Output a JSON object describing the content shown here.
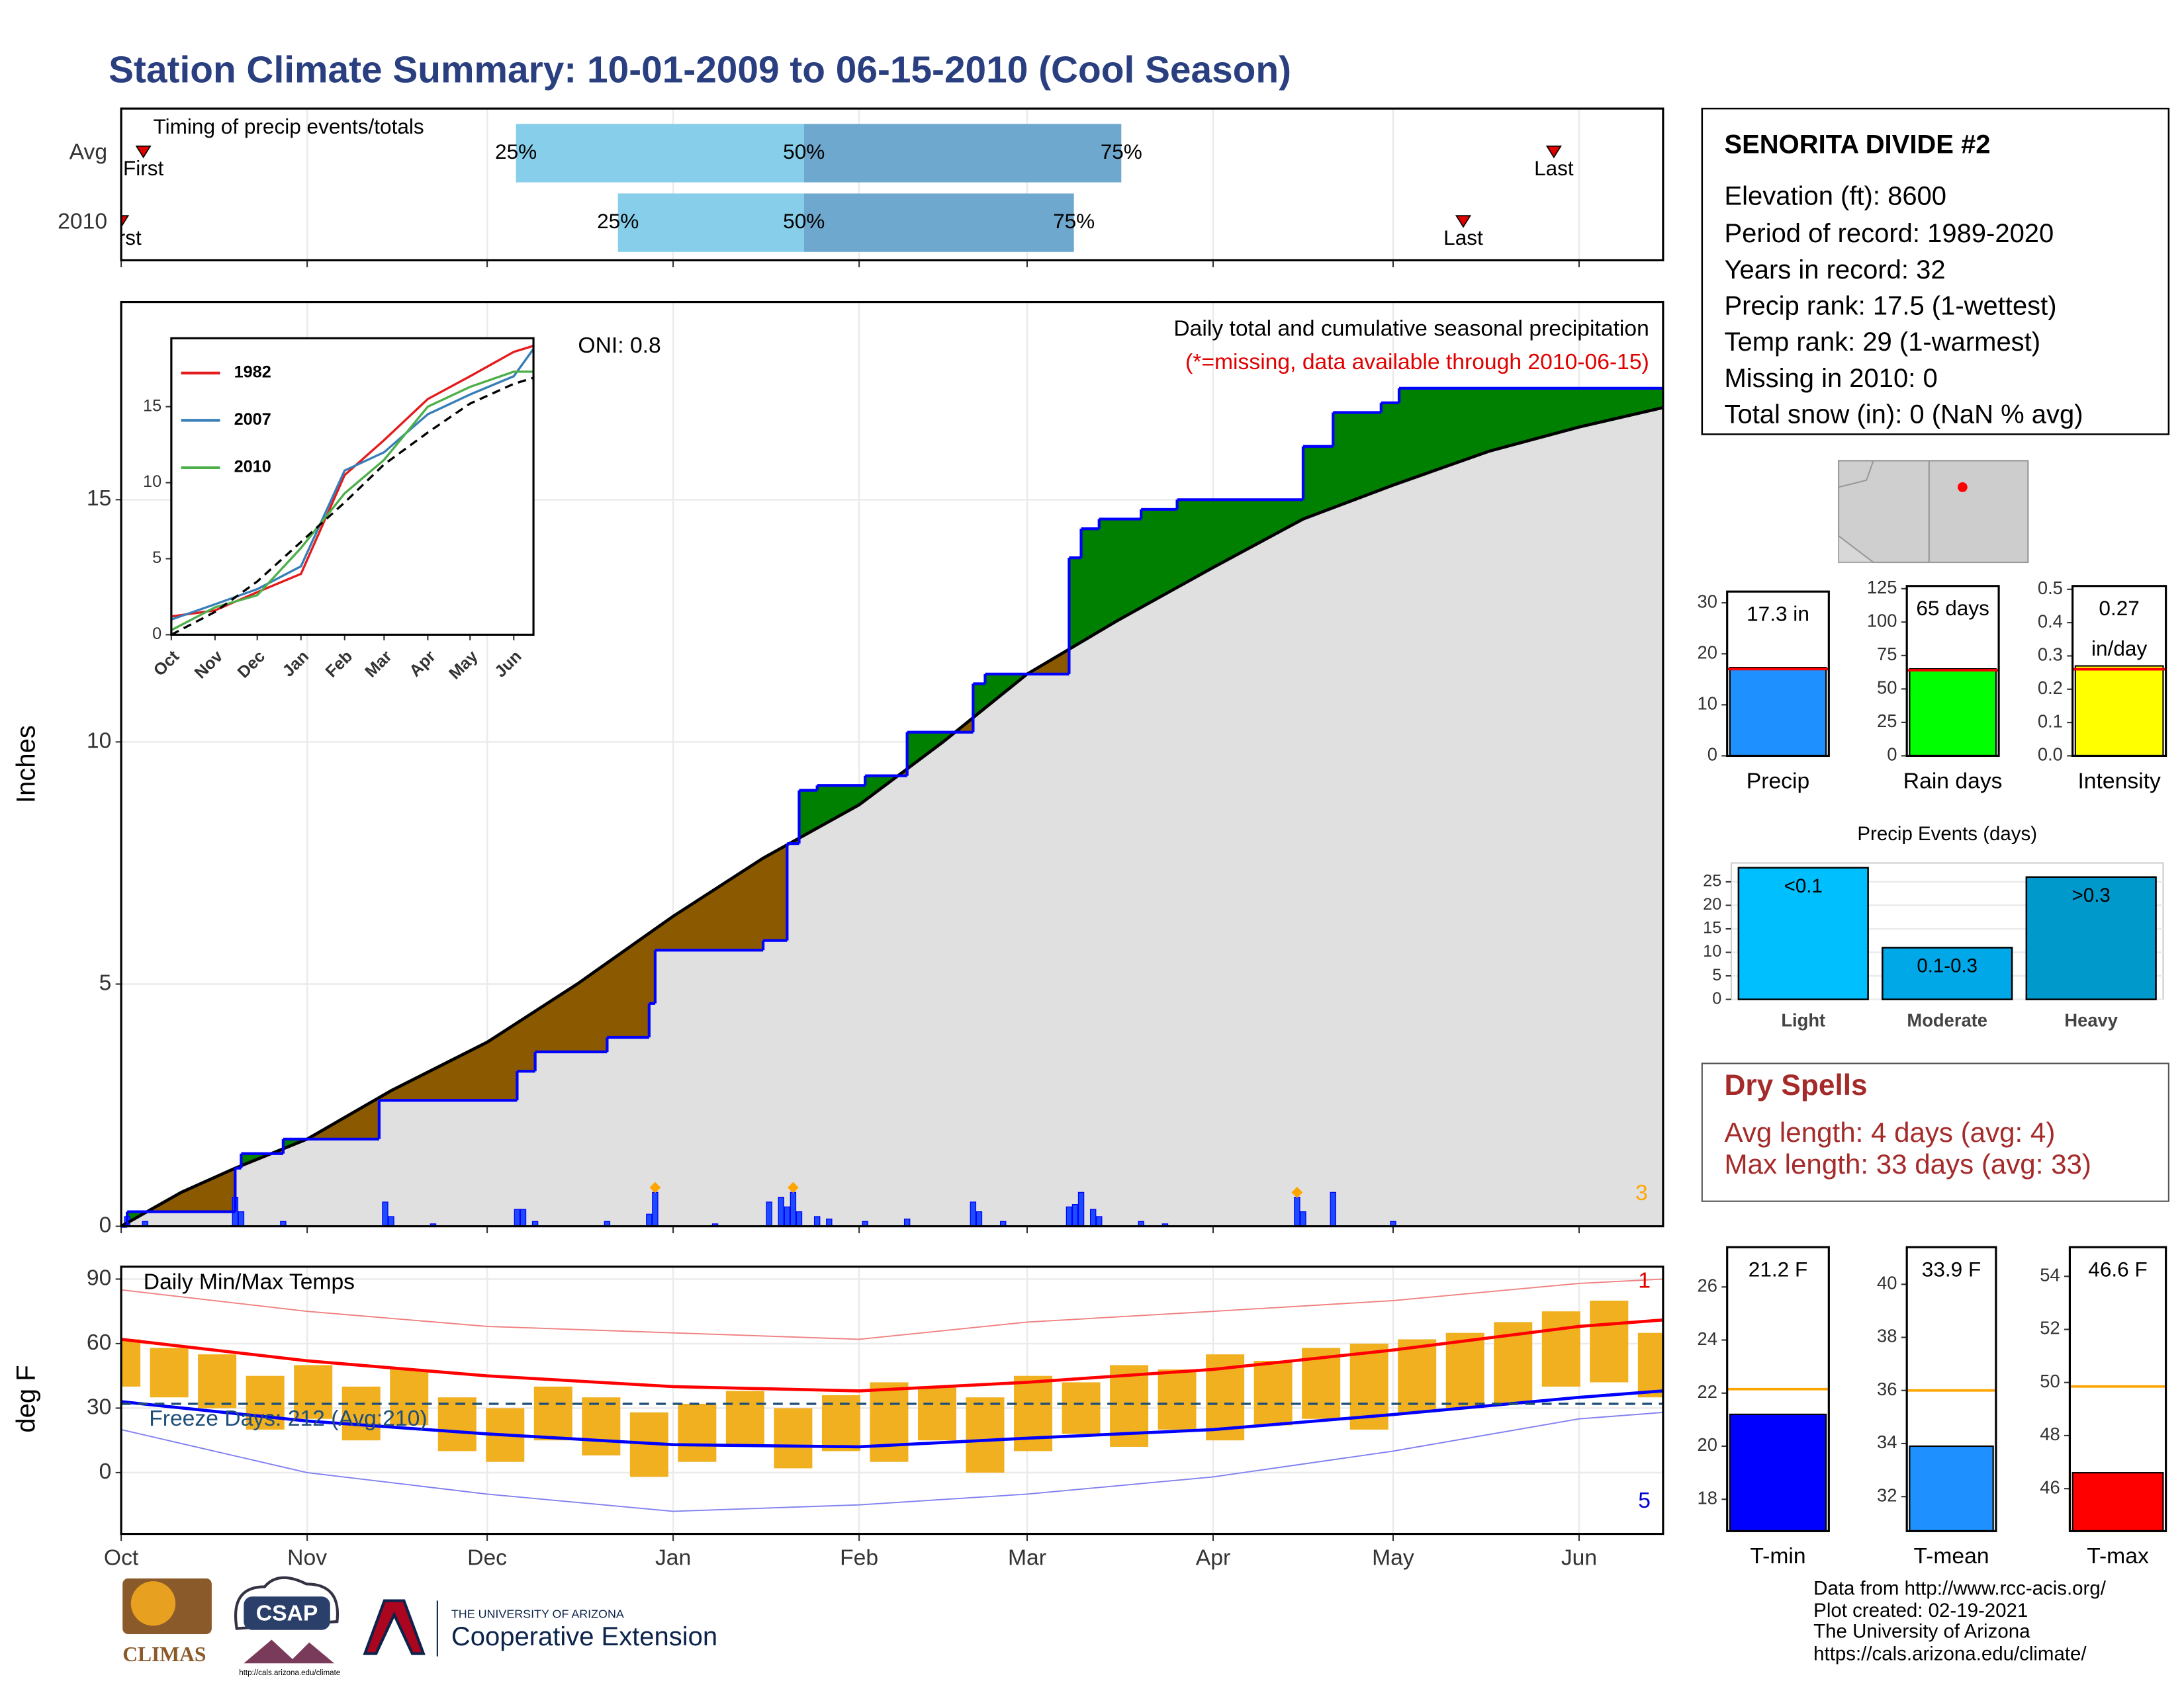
{
  "title": "Station Climate Summary: 10-01-2009 to 06-15-2010 (Cool Season)",
  "season_axis": {
    "xlim": [
      0,
      257
    ],
    "xticks": [
      {
        "value": 0,
        "label": "Oct"
      },
      {
        "value": 31,
        "label": "Nov"
      },
      {
        "value": 61,
        "label": "Dec"
      },
      {
        "value": 92,
        "label": "Jan"
      },
      {
        "value": 123,
        "label": "Feb"
      },
      {
        "value": 151,
        "label": "Mar"
      },
      {
        "value": 182,
        "label": "Apr"
      },
      {
        "value": 212,
        "label": "May"
      },
      {
        "value": 243,
        "label": "Jun"
      }
    ]
  },
  "chart_data": [
    {
      "type": "timing",
      "title": "Timing of precip events/totals",
      "categories": [
        "Avg",
        "2010"
      ],
      "first": [
        3.7,
        0
      ],
      "q25": [
        65.8,
        82.8
      ],
      "q50": [
        113.8,
        113.8
      ],
      "q75": [
        166.7,
        158.8
      ],
      "last": [
        238.8,
        223.7
      ],
      "labels": {
        "first": "First",
        "q25": "25%",
        "q50": "50%",
        "q75": "75%",
        "last": "Last"
      },
      "colors": {
        "lower": "#87ceeb",
        "upper": "#6fa8cf",
        "marker": "#e00000"
      }
    },
    {
      "type": "cumulative",
      "title": "Daily total and cumulative seasonal precipitation",
      "subtitle": "(*=missing, data available through 2010-06-15)",
      "annotation": "ONI: 0.8",
      "y_label": "Inches",
      "corner_label": "3",
      "ylim": [
        0,
        19.08
      ],
      "yticks": [
        0,
        5,
        10,
        15
      ],
      "above_color": "#008000",
      "below_color": "#8b5a00",
      "fill_color": "#e0e0e0",
      "series": [
        {
          "name": "Average",
          "color": "#000000",
          "x": [
            0,
            10,
            19,
            31,
            45,
            61,
            76,
            92,
            107,
            123,
            137,
            151,
            166,
            182,
            197,
            212,
            228,
            243,
            257
          ],
          "values": [
            0,
            0.7,
            1.2,
            1.8,
            2.8,
            3.8,
            5.0,
            6.4,
            7.6,
            8.7,
            10.0,
            11.4,
            12.5,
            13.6,
            14.6,
            15.3,
            16.0,
            16.5,
            16.9
          ]
        },
        {
          "name": "2010",
          "color": "#0000ff",
          "x": [
            0,
            1,
            19,
            20,
            27,
            43,
            66,
            69,
            81,
            88,
            89,
            107,
            111,
            113,
            116,
            124,
            131,
            142,
            144,
            158,
            160,
            163,
            170,
            176,
            197,
            202,
            210,
            213,
            257
          ],
          "values": [
            0,
            0.3,
            1.2,
            1.5,
            1.8,
            2.6,
            3.2,
            3.6,
            3.9,
            4.6,
            5.7,
            5.9,
            7.9,
            9.0,
            9.1,
            9.3,
            10.2,
            11.2,
            11.4,
            13.8,
            14.4,
            14.6,
            14.8,
            15.0,
            16.1,
            16.8,
            17.0,
            17.3,
            17.3
          ]
        }
      ],
      "daily": {
        "color": "#0000ff",
        "x": [
          1,
          4,
          19,
          20,
          27,
          44,
          45,
          52,
          66,
          67,
          69,
          81,
          88,
          89,
          99,
          108,
          110,
          111,
          112,
          113,
          116,
          118,
          124,
          131,
          142,
          143,
          147,
          158,
          159,
          160,
          162,
          163,
          170,
          174,
          196,
          197,
          202,
          212
        ],
        "values": [
          0.2,
          0.1,
          0.6,
          0.3,
          0.1,
          0.5,
          0.2,
          0.05,
          0.35,
          0.35,
          0.1,
          0.1,
          0.25,
          0.7,
          0.05,
          0.5,
          0.6,
          0.4,
          0.7,
          0.3,
          0.2,
          0.15,
          0.1,
          0.15,
          0.5,
          0.3,
          0.1,
          0.4,
          0.45,
          0.7,
          0.35,
          0.2,
          0.1,
          0.05,
          0.6,
          0.3,
          0.7,
          0.1
        ]
      },
      "flags": {
        "color": "#ffa500",
        "x": [
          89,
          112,
          196
        ],
        "values": [
          0.8,
          0.8,
          0.7
        ]
      }
    },
    {
      "type": "inset_lines",
      "ylim": [
        0,
        19.5
      ],
      "yticks": [
        0,
        5,
        10,
        15
      ],
      "x": [
        0,
        31,
        61,
        92,
        123,
        151,
        182,
        212,
        243,
        257
      ],
      "normal": {
        "color": "#000000",
        "values": [
          0,
          1.5,
          3.5,
          6.1,
          8.7,
          11.2,
          13.3,
          15.2,
          16.5,
          16.9
        ]
      },
      "series": [
        {
          "name": "1982",
          "color": "#e41a1c",
          "values": [
            1.2,
            1.6,
            2.8,
            4.0,
            10.5,
            12.8,
            15.5,
            17.0,
            18.6,
            19.0
          ]
        },
        {
          "name": "2007",
          "color": "#377eb8",
          "values": [
            1.0,
            2.0,
            3.0,
            4.5,
            10.8,
            12.0,
            14.5,
            15.8,
            17.0,
            18.8
          ]
        },
        {
          "name": "2010",
          "color": "#4daf4a",
          "values": [
            0.3,
            1.8,
            2.6,
            5.7,
            9.3,
            11.5,
            15.0,
            16.3,
            17.3,
            17.3
          ]
        }
      ]
    },
    {
      "type": "temperature",
      "title": "Daily Min/Max Temps",
      "annotation": "Freeze Days: 212 (Avg:210)",
      "y_label": "deg F",
      "corner_top": "1",
      "corner_bottom": "5",
      "ylim": [
        -28.5,
        95.8
      ],
      "yticks": [
        0,
        30,
        60,
        90
      ],
      "freeze_line": 32,
      "line_x": [
        0,
        31,
        61,
        92,
        123,
        151,
        182,
        212,
        243,
        257
      ],
      "normal_max": {
        "color": "#ff0000",
        "values": [
          62,
          52,
          45,
          40,
          38,
          42,
          48,
          57,
          68,
          71
        ]
      },
      "normal_min": {
        "color": "#0000ff",
        "values": [
          33,
          24,
          18,
          13,
          12,
          16,
          20,
          27,
          35,
          38
        ]
      },
      "record_max": {
        "color": "#f08080",
        "values": [
          85,
          75,
          68,
          65,
          62,
          70,
          75,
          80,
          88,
          90
        ]
      },
      "record_min": {
        "color": "#8080f0",
        "values": [
          20,
          0,
          -10,
          -18,
          -15,
          -10,
          -2,
          10,
          25,
          28
        ]
      },
      "daily": {
        "color": "#f0b020",
        "x": [
          0,
          8,
          16,
          24,
          32,
          40,
          48,
          56,
          64,
          72,
          80,
          88,
          96,
          104,
          112,
          120,
          128,
          136,
          144,
          152,
          160,
          168,
          176,
          184,
          192,
          200,
          208,
          216,
          224,
          232,
          240,
          248,
          256
        ],
        "low": [
          40,
          35,
          30,
          20,
          25,
          15,
          22,
          10,
          5,
          15,
          8,
          -2,
          5,
          12,
          2,
          10,
          5,
          15,
          0,
          10,
          18,
          12,
          20,
          15,
          22,
          25,
          20,
          28,
          30,
          32,
          40,
          42,
          35
        ],
        "high": [
          62,
          58,
          55,
          45,
          50,
          40,
          48,
          35,
          30,
          40,
          35,
          28,
          32,
          38,
          30,
          36,
          42,
          40,
          35,
          45,
          42,
          50,
          48,
          55,
          52,
          58,
          60,
          62,
          65,
          70,
          75,
          80,
          65
        ]
      }
    },
    {
      "type": "summary_bar",
      "label": "Precip",
      "value": 17.3,
      "value_label": "17.3 in",
      "normal": 17.0,
      "color": "#1e90ff",
      "normal_color": "#ff0000",
      "ylim": [
        0,
        32.2
      ],
      "yticks": [
        0,
        10,
        20,
        30
      ]
    },
    {
      "type": "summary_bar",
      "label": "Rain days",
      "value": 65,
      "value_label": "65 days",
      "normal": 64,
      "color": "#00ff00",
      "normal_color": "#ff0000",
      "ylim": [
        0,
        127
      ],
      "yticks": [
        0,
        25,
        50,
        75,
        100,
        125
      ]
    },
    {
      "type": "summary_bar",
      "label": "Intensity",
      "value": 0.27,
      "value_label": "0.27 in/day",
      "normal": 0.26,
      "color": "#ffff00",
      "normal_color": "#ff0000",
      "ylim": [
        0,
        0.51
      ],
      "yticks": [
        {
          "value": 0,
          "label": "0.0"
        },
        {
          "value": 0.1,
          "label": "0.1"
        },
        {
          "value": 0.2,
          "label": "0.2"
        },
        {
          "value": 0.3,
          "label": "0.3"
        },
        {
          "value": 0.4,
          "label": "0.4"
        },
        {
          "value": 0.5,
          "label": "0.5"
        }
      ]
    },
    {
      "type": "events_bar",
      "title": "Precip Events (days)",
      "categories": [
        "Light",
        "Moderate",
        "Heavy"
      ],
      "values": [
        28,
        11,
        26
      ],
      "thresholds": [
        "<0.1",
        "0.1-0.3",
        ">0.3"
      ],
      "colors": [
        "#00bfff",
        "#00a8e8",
        "#0099cc"
      ],
      "ylim": [
        0,
        29
      ],
      "yticks": [
        0,
        5,
        10,
        15,
        20,
        25
      ]
    },
    {
      "type": "summary_bar",
      "label": "T-min",
      "value": 21.2,
      "value_label": "21.2 F",
      "normal": 22.15,
      "color": "#0000ff",
      "normal_color": "#ffa500",
      "ylim": [
        16.8,
        27.5
      ],
      "yticks": [
        18,
        20,
        22,
        24,
        26
      ]
    },
    {
      "type": "summary_bar",
      "label": "T-mean",
      "value": 33.9,
      "value_label": "33.9 F",
      "normal": 36.0,
      "color": "#1e90ff",
      "normal_color": "#ffa500",
      "ylim": [
        30.7,
        41.4
      ],
      "yticks": [
        32,
        34,
        36,
        38,
        40
      ]
    },
    {
      "type": "summary_bar",
      "label": "T-max",
      "value": 46.6,
      "value_label": "46.6 F",
      "normal": 49.85,
      "color": "#ff0000",
      "normal_color": "#ffa500",
      "ylim": [
        44.4,
        55.1
      ],
      "yticks": [
        46,
        48,
        50,
        52,
        54
      ]
    }
  ],
  "station_info": {
    "name": "SENORITA DIVIDE #2",
    "lines": [
      "Elevation (ft): 8600",
      "Period of record: 1989-2020",
      "Years in record: 32",
      "Precip rank: 17.5 (1-wettest)",
      "Temp rank: 29 (1-warmest)",
      "Missing in 2010: 0",
      "Total snow (in): 0 (NaN % avg)"
    ]
  },
  "dry_spells": {
    "title": "Dry Spells",
    "lines": [
      "Avg length: 4 days (avg: 4)",
      "Max length: 33 days (avg: 33)"
    ]
  },
  "credits": [
    "Data from http://www.rcc-acis.org/",
    "Plot created: 02-19-2021",
    "The University of Arizona",
    "https://cals.arizona.edu/climate/"
  ],
  "logos": {
    "climas": "CLIMAS",
    "csap": "CSAP",
    "csap_url": "http://cals.arizona.edu/climate",
    "ua_small": "THE UNIVERSITY OF ARIZONA",
    "ua_large": "Cooperative Extension"
  }
}
